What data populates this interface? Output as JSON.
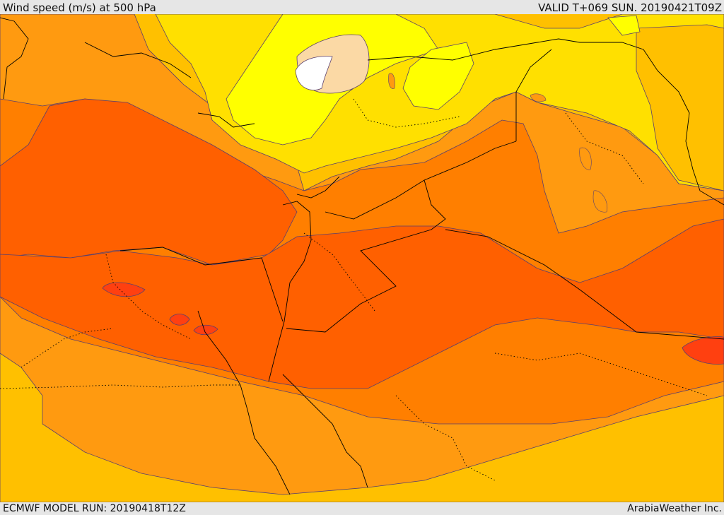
{
  "header": {
    "title": "Wind speed (m/s) at 500 hPa",
    "valid_time": "VALID T+069 SUN. 20190421T09Z"
  },
  "footer": {
    "model_run": "ECMWF MODEL RUN: 20190418T12Z",
    "credit": "ArabiaWeather Inc."
  },
  "map": {
    "variable": "wind speed at 500 hPa",
    "palette": {
      "calm": "#ffffff",
      "very_light": "#fbd9a5",
      "light": "#ffff00",
      "low": "#ffe000",
      "moderate": "#ffc000",
      "elevated": "#ff9a10",
      "high": "#ff7f00",
      "strong": "#ff6000",
      "very_strong": "#ff4010",
      "extreme": "#ff3020"
    },
    "line_colors": {
      "contour": "#5a3f6e",
      "border": "#000000"
    }
  }
}
